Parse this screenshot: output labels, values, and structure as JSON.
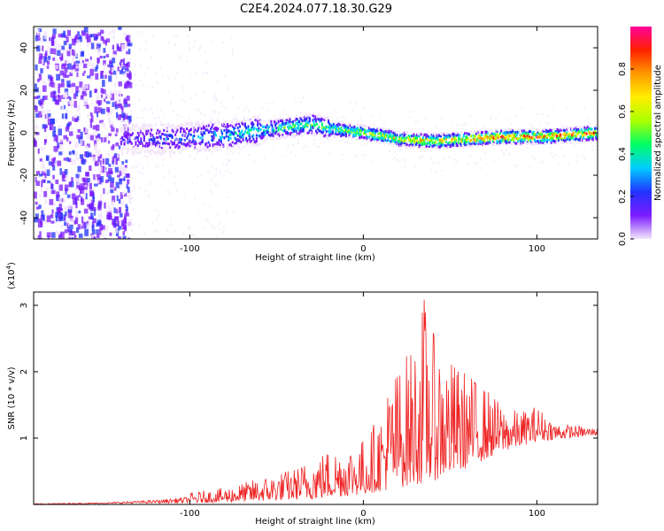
{
  "title": "C2E4.2024.077.18.30.G29",
  "chart_data": [
    {
      "type": "heatmap",
      "xlabel": "Height of straight line (km)",
      "ylabel": "Frequency (Hz)",
      "xlim": [
        -190,
        135
      ],
      "ylim": [
        -50,
        50
      ],
      "xticks": [
        -100,
        0,
        100
      ],
      "yticks": [
        -40,
        -20,
        0,
        20,
        40
      ],
      "colorbar": {
        "label": "Normalized spectral amplitude",
        "range": [
          0,
          1
        ],
        "ticks": [
          "0.0",
          "0.2",
          "0.4",
          "0.6",
          "0.8"
        ],
        "colormap": [
          "#f3e6fb",
          "#7b1bff",
          "#2233ff",
          "#00ccff",
          "#00ff66",
          "#aaff00",
          "#ffee00",
          "#ff9900",
          "#ff2200",
          "#ff0099"
        ]
      },
      "ridge": {
        "x": [
          -140,
          -120,
          -100,
          -80,
          -60,
          -40,
          -30,
          -20,
          0,
          20,
          40,
          60,
          80,
          100,
          120,
          135
        ],
        "y": [
          -3,
          -3,
          -2,
          -1,
          1,
          3,
          4,
          2,
          0,
          -3,
          -4,
          -3,
          -2,
          -2,
          -1,
          0
        ]
      }
    },
    {
      "type": "line",
      "xlabel": "Height of straight line (km)",
      "ylabel": "SNR (10 * v/v)",
      "y_multiplier": "(x10",
      "y_multiplier_exp": "4",
      "y_multiplier_close": ")",
      "xlim": [
        -190,
        135
      ],
      "ylim": [
        0,
        3.2
      ],
      "xticks": [
        -100,
        0,
        100
      ],
      "yticks": [
        1,
        2,
        3
      ],
      "color": "#ee2222",
      "envelope": {
        "x": [
          -190,
          -150,
          -120,
          -100,
          -80,
          -60,
          -40,
          -30,
          -20,
          -10,
          0,
          10,
          15,
          20,
          30,
          35,
          40,
          50,
          60,
          70,
          80,
          90,
          100,
          110,
          120,
          135
        ],
        "y": [
          0.02,
          0.04,
          0.1,
          0.18,
          0.25,
          0.4,
          0.55,
          0.7,
          0.85,
          0.9,
          1.0,
          1.4,
          1.9,
          2.1,
          2.5,
          3.2,
          2.6,
          2.2,
          2.0,
          1.8,
          1.5,
          1.4,
          1.5,
          1.25,
          1.2,
          1.15
        ]
      },
      "floor": {
        "x": [
          -190,
          -100,
          -60,
          -30,
          0,
          20,
          40,
          60,
          80,
          100,
          135
        ],
        "y": [
          0.0,
          0.02,
          0.05,
          0.08,
          0.15,
          0.25,
          0.35,
          0.55,
          0.8,
          0.95,
          1.05
        ]
      }
    }
  ]
}
